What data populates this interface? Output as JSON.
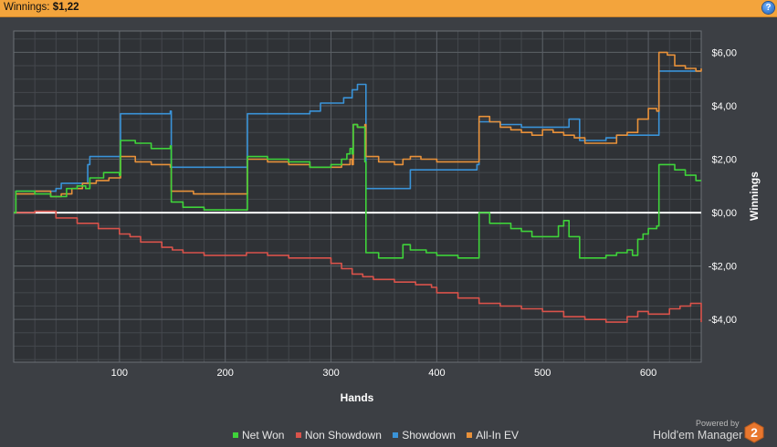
{
  "header": {
    "label": "Winnings:",
    "value": "$1,22",
    "help_icon": "help-icon",
    "help_glyph": "?"
  },
  "colors": {
    "net_won": "#3fd33a",
    "non_showdown": "#d9534b",
    "showdown": "#3a93d8",
    "allin_ev": "#e8913a",
    "zero_line": "#ffffff"
  },
  "footer": {
    "powered_by": "Powered by",
    "brand": "Hold'em Manager",
    "logo_digit": "2"
  },
  "chart_data": {
    "type": "line",
    "xlabel": "Hands",
    "ylabel": "Winnings",
    "xlim": [
      0,
      650
    ],
    "ylim": [
      -5.6,
      6.8
    ],
    "x_ticks": [
      100,
      200,
      300,
      400,
      500,
      600
    ],
    "y_ticks": [
      -4,
      -2,
      0,
      2,
      4,
      6
    ],
    "y_tick_labels": [
      "-$4,00",
      "-$2,00",
      "$0,00",
      "$2,00",
      "$4,00",
      "$6,00"
    ],
    "legend_position": "bottom",
    "grid": true,
    "series": [
      {
        "name": "Net Won",
        "color": "#3fd33a",
        "points": [
          [
            0,
            0
          ],
          [
            2,
            0.8
          ],
          [
            20,
            0.7
          ],
          [
            35,
            0.6
          ],
          [
            45,
            0.6
          ],
          [
            50,
            0.9
          ],
          [
            60,
            1.0
          ],
          [
            68,
            0.9
          ],
          [
            72,
            1.3
          ],
          [
            85,
            1.5
          ],
          [
            95,
            1.5
          ],
          [
            100,
            1.4
          ],
          [
            101,
            2.7
          ],
          [
            115,
            2.6
          ],
          [
            130,
            2.4
          ],
          [
            148,
            2.5
          ],
          [
            149,
            0.4
          ],
          [
            160,
            0.2
          ],
          [
            180,
            0.1
          ],
          [
            200,
            0.1
          ],
          [
            220,
            0.1
          ],
          [
            221,
            2.1
          ],
          [
            240,
            2.0
          ],
          [
            260,
            1.9
          ],
          [
            280,
            1.7
          ],
          [
            300,
            1.8
          ],
          [
            310,
            2.0
          ],
          [
            315,
            2.2
          ],
          [
            318,
            2.4
          ],
          [
            320,
            2.2
          ],
          [
            321,
            3.3
          ],
          [
            325,
            3.2
          ],
          [
            332,
            1.9
          ],
          [
            333,
            -1.5
          ],
          [
            345,
            -1.7
          ],
          [
            360,
            -1.7
          ],
          [
            368,
            -1.2
          ],
          [
            375,
            -1.4
          ],
          [
            390,
            -1.5
          ],
          [
            400,
            -1.6
          ],
          [
            420,
            -1.7
          ],
          [
            438,
            -1.7
          ],
          [
            440,
            0.0
          ],
          [
            450,
            -0.4
          ],
          [
            460,
            -0.4
          ],
          [
            470,
            -0.6
          ],
          [
            480,
            -0.7
          ],
          [
            490,
            -0.9
          ],
          [
            500,
            -0.9
          ],
          [
            510,
            -0.9
          ],
          [
            515,
            -0.5
          ],
          [
            520,
            -0.3
          ],
          [
            525,
            -0.9
          ],
          [
            530,
            -0.9
          ],
          [
            535,
            -1.7
          ],
          [
            550,
            -1.7
          ],
          [
            560,
            -1.6
          ],
          [
            570,
            -1.5
          ],
          [
            580,
            -1.4
          ],
          [
            585,
            -1.6
          ],
          [
            590,
            -1.0
          ],
          [
            595,
            -0.8
          ],
          [
            600,
            -0.6
          ],
          [
            608,
            -0.5
          ],
          [
            610,
            1.8
          ],
          [
            618,
            1.8
          ],
          [
            625,
            1.6
          ],
          [
            635,
            1.4
          ],
          [
            645,
            1.2
          ],
          [
            650,
            1.2
          ]
        ]
      },
      {
        "name": "Non Showdown",
        "color": "#d9534b",
        "points": [
          [
            0,
            0
          ],
          [
            20,
            0.05
          ],
          [
            40,
            -0.2
          ],
          [
            60,
            -0.4
          ],
          [
            80,
            -0.6
          ],
          [
            100,
            -0.8
          ],
          [
            110,
            -0.9
          ],
          [
            120,
            -1.1
          ],
          [
            140,
            -1.3
          ],
          [
            150,
            -1.4
          ],
          [
            160,
            -1.5
          ],
          [
            180,
            -1.6
          ],
          [
            200,
            -1.6
          ],
          [
            220,
            -1.5
          ],
          [
            240,
            -1.6
          ],
          [
            260,
            -1.7
          ],
          [
            280,
            -1.7
          ],
          [
            300,
            -1.9
          ],
          [
            310,
            -2.1
          ],
          [
            320,
            -2.3
          ],
          [
            330,
            -2.4
          ],
          [
            340,
            -2.5
          ],
          [
            360,
            -2.6
          ],
          [
            380,
            -2.7
          ],
          [
            395,
            -2.8
          ],
          [
            400,
            -3.0
          ],
          [
            420,
            -3.2
          ],
          [
            440,
            -3.4
          ],
          [
            460,
            -3.5
          ],
          [
            480,
            -3.6
          ],
          [
            500,
            -3.7
          ],
          [
            520,
            -3.9
          ],
          [
            540,
            -4.0
          ],
          [
            560,
            -4.1
          ],
          [
            580,
            -3.9
          ],
          [
            590,
            -3.7
          ],
          [
            600,
            -3.8
          ],
          [
            620,
            -3.6
          ],
          [
            630,
            -3.5
          ],
          [
            640,
            -3.4
          ],
          [
            650,
            -4.1
          ]
        ]
      },
      {
        "name": "Showdown",
        "color": "#3a93d8",
        "points": [
          [
            0,
            0
          ],
          [
            2,
            0.8
          ],
          [
            20,
            0.8
          ],
          [
            40,
            0.9
          ],
          [
            45,
            1.1
          ],
          [
            55,
            1.1
          ],
          [
            70,
            1.8
          ],
          [
            72,
            2.1
          ],
          [
            85,
            2.1
          ],
          [
            95,
            2.1
          ],
          [
            100,
            2.1
          ],
          [
            101,
            3.7
          ],
          [
            125,
            3.7
          ],
          [
            140,
            3.7
          ],
          [
            148,
            3.8
          ],
          [
            149,
            1.7
          ],
          [
            170,
            1.7
          ],
          [
            190,
            1.7
          ],
          [
            220,
            1.7
          ],
          [
            221,
            3.7
          ],
          [
            250,
            3.7
          ],
          [
            270,
            3.7
          ],
          [
            280,
            3.8
          ],
          [
            290,
            4.1
          ],
          [
            300,
            4.1
          ],
          [
            312,
            4.3
          ],
          [
            320,
            4.6
          ],
          [
            325,
            4.8
          ],
          [
            330,
            4.8
          ],
          [
            333,
            0.9
          ],
          [
            345,
            0.9
          ],
          [
            360,
            0.9
          ],
          [
            370,
            0.9
          ],
          [
            375,
            1.6
          ],
          [
            400,
            1.6
          ],
          [
            420,
            1.6
          ],
          [
            438,
            1.8
          ],
          [
            440,
            3.4
          ],
          [
            460,
            3.3
          ],
          [
            480,
            3.2
          ],
          [
            500,
            3.2
          ],
          [
            520,
            3.2
          ],
          [
            525,
            3.5
          ],
          [
            530,
            3.5
          ],
          [
            535,
            2.7
          ],
          [
            550,
            2.7
          ],
          [
            560,
            2.8
          ],
          [
            570,
            2.9
          ],
          [
            580,
            2.9
          ],
          [
            600,
            2.9
          ],
          [
            608,
            2.9
          ],
          [
            610,
            5.3
          ],
          [
            630,
            5.3
          ],
          [
            650,
            5.3
          ]
        ]
      },
      {
        "name": "All-In EV",
        "color": "#e8913a",
        "points": [
          [
            0,
            0
          ],
          [
            2,
            0.7
          ],
          [
            20,
            0.8
          ],
          [
            35,
            0.6
          ],
          [
            45,
            0.7
          ],
          [
            55,
            0.9
          ],
          [
            65,
            1.1
          ],
          [
            72,
            1.1
          ],
          [
            78,
            1.2
          ],
          [
            90,
            1.3
          ],
          [
            100,
            1.3
          ],
          [
            101,
            2.1
          ],
          [
            115,
            1.9
          ],
          [
            130,
            1.8
          ],
          [
            148,
            1.7
          ],
          [
            149,
            0.8
          ],
          [
            170,
            0.7
          ],
          [
            200,
            0.7
          ],
          [
            220,
            0.7
          ],
          [
            221,
            2.0
          ],
          [
            240,
            1.9
          ],
          [
            260,
            1.8
          ],
          [
            280,
            1.7
          ],
          [
            300,
            1.7
          ],
          [
            310,
            1.8
          ],
          [
            318,
            2.0
          ],
          [
            320,
            1.8
          ],
          [
            321,
            3.3
          ],
          [
            325,
            3.2
          ],
          [
            332,
            3.3
          ],
          [
            333,
            2.1
          ],
          [
            345,
            1.9
          ],
          [
            360,
            1.8
          ],
          [
            368,
            2.0
          ],
          [
            375,
            2.1
          ],
          [
            385,
            2.0
          ],
          [
            400,
            1.9
          ],
          [
            420,
            1.9
          ],
          [
            438,
            1.9
          ],
          [
            440,
            3.6
          ],
          [
            450,
            3.4
          ],
          [
            460,
            3.2
          ],
          [
            470,
            3.1
          ],
          [
            480,
            3.0
          ],
          [
            490,
            2.9
          ],
          [
            500,
            3.1
          ],
          [
            510,
            3.0
          ],
          [
            520,
            2.9
          ],
          [
            530,
            2.8
          ],
          [
            540,
            2.6
          ],
          [
            550,
            2.6
          ],
          [
            560,
            2.6
          ],
          [
            570,
            2.9
          ],
          [
            580,
            3.0
          ],
          [
            590,
            3.5
          ],
          [
            600,
            3.9
          ],
          [
            608,
            3.8
          ],
          [
            610,
            6.0
          ],
          [
            618,
            5.9
          ],
          [
            625,
            5.5
          ],
          [
            635,
            5.4
          ],
          [
            645,
            5.3
          ],
          [
            650,
            5.4
          ]
        ]
      }
    ]
  }
}
